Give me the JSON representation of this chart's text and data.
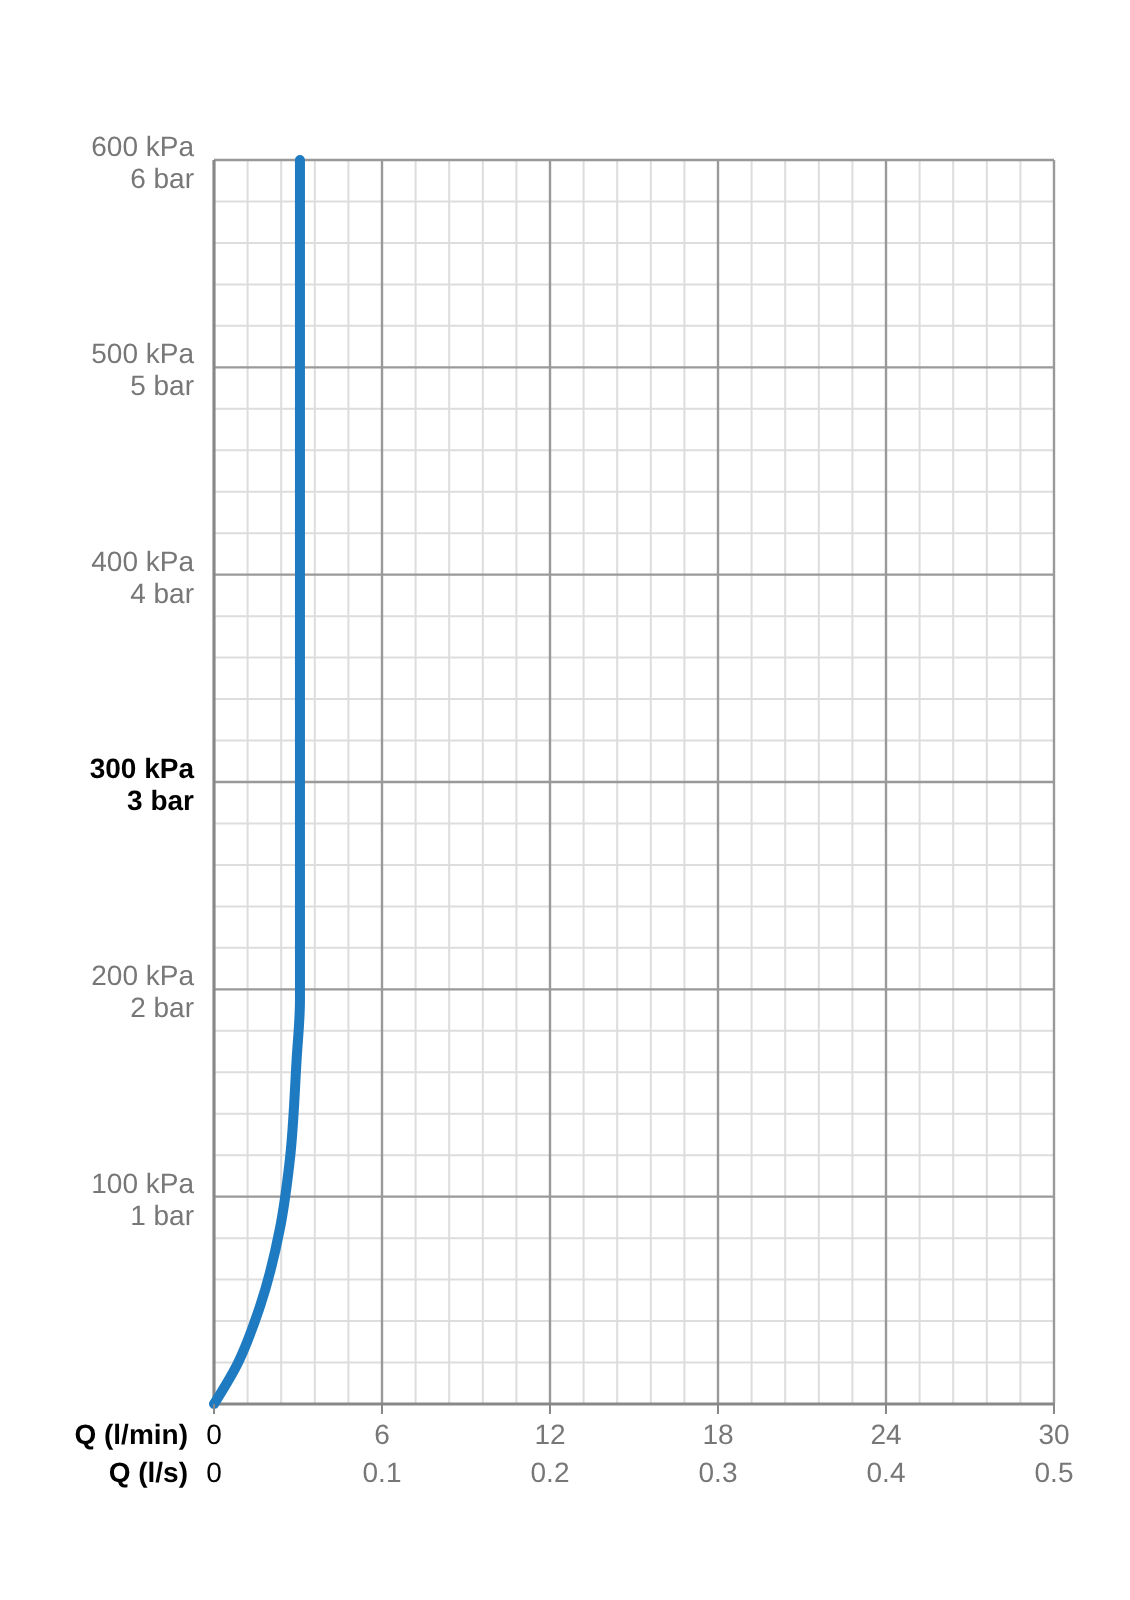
{
  "chart_data": {
    "type": "line",
    "xlabel": "Q (l/min)",
    "x2label": "Q (l/s)",
    "xlim": [
      0,
      30
    ],
    "xticks": [
      0,
      6,
      12,
      18,
      24,
      30
    ],
    "x2lim": [
      0,
      0.5
    ],
    "x2ticks": [
      0,
      0.1,
      0.2,
      0.3,
      0.4,
      0.5
    ],
    "ylim": [
      0,
      600
    ],
    "yticks": [
      {
        "value": 100,
        "label": "100 kPa"
      },
      {
        "value": 200,
        "label": "200 kPa"
      },
      {
        "value": 300,
        "label": "300 kPa"
      },
      {
        "value": 400,
        "label": "400 kPa"
      },
      {
        "value": 500,
        "label": "500 kPa"
      },
      {
        "value": 600,
        "label": "600 kPa"
      }
    ],
    "y2lim": [
      0,
      6
    ],
    "y2ticks": [
      {
        "value": 1,
        "label": "1 bar"
      },
      {
        "value": 2,
        "label": "2 bar"
      },
      {
        "value": 3,
        "label": "3 bar"
      },
      {
        "value": 4,
        "label": "4 bar"
      },
      {
        "value": 5,
        "label": "5 bar"
      },
      {
        "value": 6,
        "label": "6 bar"
      }
    ],
    "grid": true,
    "marker": "none",
    "line_style": "solid",
    "series": [
      {
        "color": "#1f7bc1",
        "x": [
          0,
          0.81,
          1.64,
          2.36,
          2.71,
          2.95,
          3.07,
          3.07
        ],
        "values": [
          0,
          18.6,
          47,
          85,
          118,
          166,
          195,
          600
        ]
      }
    ]
  }
}
